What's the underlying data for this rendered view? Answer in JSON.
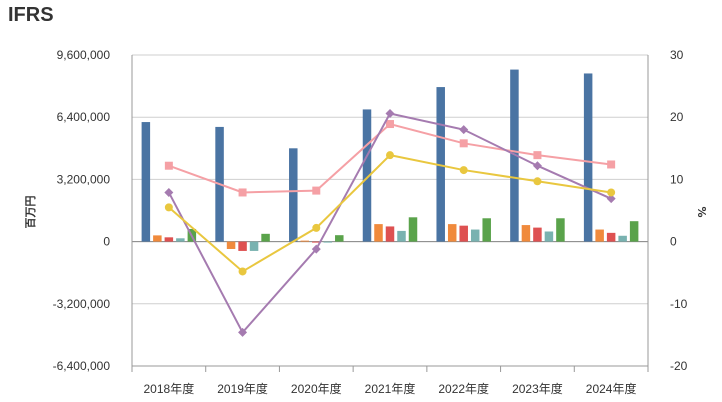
{
  "page": {
    "title": "IFRS"
  },
  "chart_data": {
    "type": "bar",
    "title": "IFRS",
    "xlabel": "",
    "ylabel": "百万円",
    "y2label": "%",
    "categories": [
      "2018年度",
      "2019年度",
      "2020年度",
      "2021年度",
      "2022年度",
      "2023年度",
      "2024年度"
    ],
    "ylim": [
      -6400000,
      9600000
    ],
    "y2lim": [
      -20,
      30
    ],
    "yticks": [
      "9,600,000",
      "6,400,000",
      "3,200,000",
      "0",
      "-3,200,000",
      "-6,400,000"
    ],
    "y2ticks": [
      "30",
      "20",
      "10",
      "0",
      "-10",
      "-20"
    ],
    "grid": true,
    "legend": "none",
    "bar_series": [
      {
        "color": "#4a74a3",
        "values": [
          6150000,
          5900000,
          4800000,
          6800000,
          7950000,
          8850000,
          8650000
        ]
      },
      {
        "color": "#f08a3c",
        "values": [
          320000,
          -380000,
          50000,
          900000,
          900000,
          850000,
          620000
        ]
      },
      {
        "color": "#de5151",
        "values": [
          220000,
          -480000,
          -50000,
          780000,
          820000,
          720000,
          450000
        ]
      },
      {
        "color": "#79b2b0",
        "values": [
          170000,
          -480000,
          -20000,
          550000,
          620000,
          520000,
          300000
        ]
      },
      {
        "color": "#5aa34b",
        "values": [
          650000,
          400000,
          330000,
          1250000,
          1200000,
          1200000,
          1050000
        ]
      }
    ],
    "line_series": [
      {
        "color": "#f5a0a5",
        "marker": "square",
        "values": [
          12.2,
          7.9,
          8.2,
          18.9,
          15.8,
          13.9,
          12.4
        ]
      },
      {
        "color": "#a57bb0",
        "marker": "diamond",
        "values": [
          7.9,
          -14.6,
          -1.2,
          20.6,
          18.0,
          12.2,
          6.9
        ]
      },
      {
        "color": "#e9c73f",
        "marker": "circle",
        "values": [
          5.5,
          -4.8,
          2.2,
          13.9,
          11.5,
          9.7,
          7.9
        ]
      }
    ]
  }
}
